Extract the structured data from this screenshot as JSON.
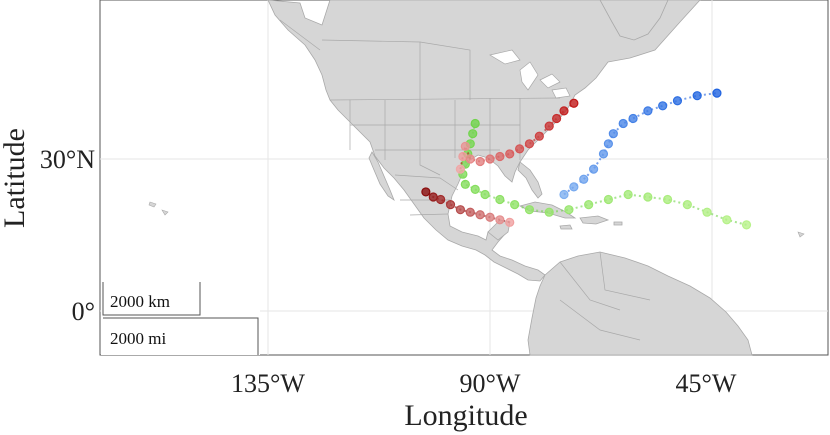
{
  "map": {
    "xlabel": "Longitude",
    "ylabel": "Latitude",
    "x_ticks": [
      "135°W",
      "90°W",
      "45°W"
    ],
    "y_ticks": [
      "30°N",
      "0°"
    ],
    "scale_bar": {
      "km_label": "2000 km",
      "mi_label": "2000 mi"
    },
    "colors": {
      "land": "#d6d6d6",
      "border": "#a9a9a9",
      "grid": "#e6e6e6",
      "ocean": "#ffffff"
    }
  },
  "chart_data": {
    "type": "scatter",
    "xlabel": "Longitude",
    "ylabel": "Latitude",
    "xlim": [
      -160,
      -20
    ],
    "ylim": [
      -10,
      47
    ],
    "x_ticks": [
      -135,
      -90,
      -45
    ],
    "y_ticks": [
      0,
      30
    ],
    "grid": true,
    "series": [
      {
        "color_start": "#b8f28a",
        "color_end": "#6fd44a",
        "points": [
          [
            -38,
            17
          ],
          [
            -42,
            18
          ],
          [
            -46,
            19.5
          ],
          [
            -50,
            21
          ],
          [
            -54,
            22
          ],
          [
            -58,
            22.5
          ],
          [
            -62,
            23
          ],
          [
            -66,
            22
          ],
          [
            -70,
            21
          ],
          [
            -74,
            20
          ],
          [
            -78,
            19.5
          ],
          [
            -82,
            20
          ],
          [
            -85,
            21
          ],
          [
            -88,
            22
          ],
          [
            -91,
            23
          ],
          [
            -93,
            24
          ],
          [
            -95,
            25
          ],
          [
            -95.5,
            27
          ],
          [
            -95,
            29
          ],
          [
            -94.5,
            31
          ],
          [
            -94,
            33
          ],
          [
            -93.5,
            35
          ],
          [
            -93,
            37
          ]
        ]
      },
      {
        "color_start": "#f0a8a8",
        "color_end": "#c01818",
        "points": [
          [
            -96,
            28
          ],
          [
            -95.5,
            30.5
          ],
          [
            -95,
            32.5
          ],
          [
            -94,
            30
          ],
          [
            -92,
            29.5
          ],
          [
            -90,
            30
          ],
          [
            -88,
            30.5
          ],
          [
            -86,
            31
          ],
          [
            -84,
            32
          ],
          [
            -82,
            33
          ],
          [
            -80,
            34.5
          ],
          [
            -78,
            36.5
          ],
          [
            -76.5,
            38
          ],
          [
            -75,
            39.5
          ],
          [
            -73,
            41
          ]
        ]
      },
      {
        "color_start": "#7fb0f0",
        "color_end": "#1f63e0",
        "points": [
          [
            -75,
            23
          ],
          [
            -73,
            24.5
          ],
          [
            -71,
            26
          ],
          [
            -69,
            28
          ],
          [
            -67,
            31
          ],
          [
            -66,
            33
          ],
          [
            -65,
            35
          ],
          [
            -63,
            37
          ],
          [
            -61,
            38
          ],
          [
            -58,
            39.5
          ],
          [
            -55,
            40.5
          ],
          [
            -52,
            41.5
          ],
          [
            -48,
            42.5
          ],
          [
            -44,
            43
          ]
        ]
      },
      {
        "color_start": "#f0a0a0",
        "color_end": "#8a0a0a",
        "points": [
          [
            -86,
            17.5
          ],
          [
            -88,
            18
          ],
          [
            -90,
            18.5
          ],
          [
            -92,
            19
          ],
          [
            -94,
            19.5
          ],
          [
            -96,
            20
          ],
          [
            -98,
            21
          ],
          [
            -100,
            22
          ],
          [
            -101.5,
            22.5
          ],
          [
            -103,
            23.5
          ]
        ]
      }
    ]
  }
}
